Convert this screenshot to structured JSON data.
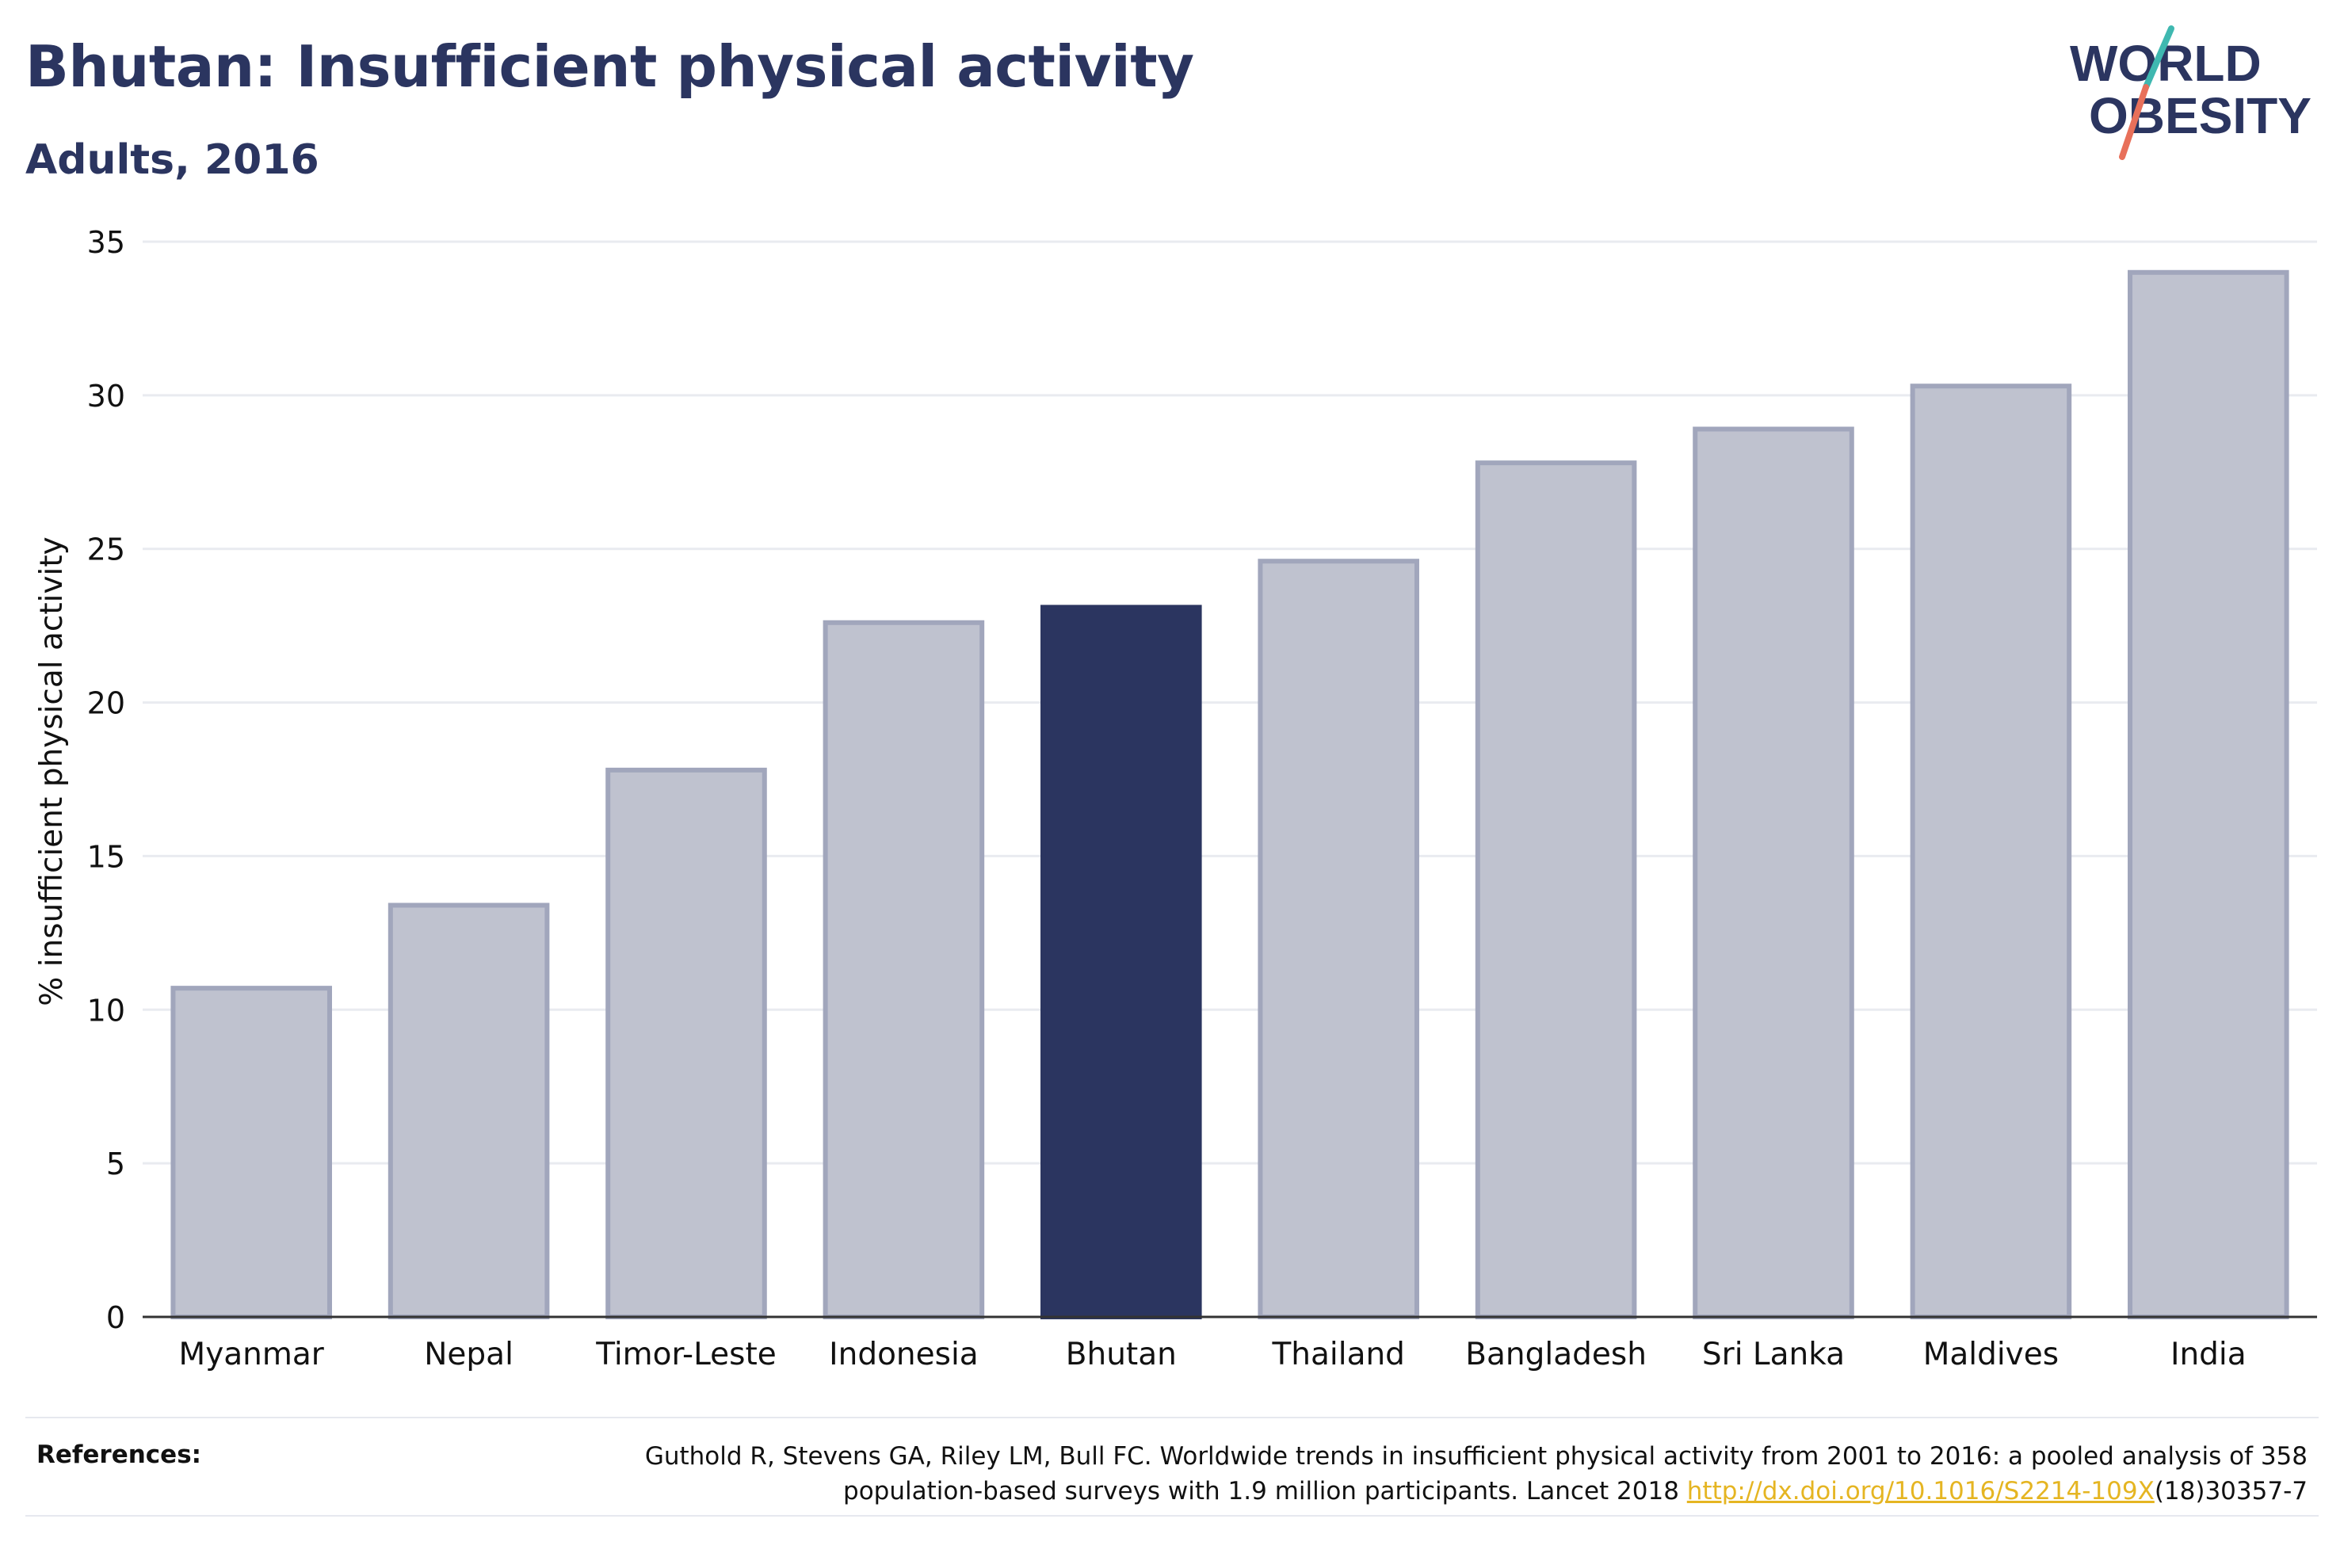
{
  "header": {
    "title": "Bhutan: Insufficient physical activity",
    "subtitle": "Adults, 2016"
  },
  "logo": {
    "line1": "WORLD",
    "line2": "OBESITY",
    "slash_teal": "#3fb8b0",
    "slash_coral": "#e8705a"
  },
  "chart_data": {
    "type": "bar",
    "categories": [
      "Myanmar",
      "Nepal",
      "Timor-Leste",
      "Indonesia",
      "Bhutan",
      "Thailand",
      "Bangladesh",
      "Sri Lanka",
      "Maldives",
      "India"
    ],
    "values": [
      10.7,
      13.4,
      17.8,
      22.6,
      23.1,
      24.6,
      27.8,
      28.9,
      30.3,
      34.0
    ],
    "highlight": "Bhutan",
    "ylabel": "% insufficient physical activity",
    "xlabel": "",
    "ylim": [
      0,
      35
    ],
    "yticks": [
      0,
      5,
      10,
      15,
      20,
      25,
      30,
      35
    ],
    "grid": true,
    "colors": {
      "bar": "#bfc2cf",
      "bar_border": "#a1a6bc",
      "highlight": "#2b3560",
      "grid": "#e9ebf0",
      "axis": "#333333"
    }
  },
  "references": {
    "label": "References:",
    "text_before": "Guthold R, Stevens GA, Riley LM, Bull FC. Worldwide trends in insufficient physical activity from 2001 to 2016: a pooled analysis of 358 population-based surveys with 1.9 million participants. Lancet 2018 ",
    "link": "http://dx.doi.org/10.1016/S2214-109X",
    "text_after": "(18)30357-7"
  }
}
